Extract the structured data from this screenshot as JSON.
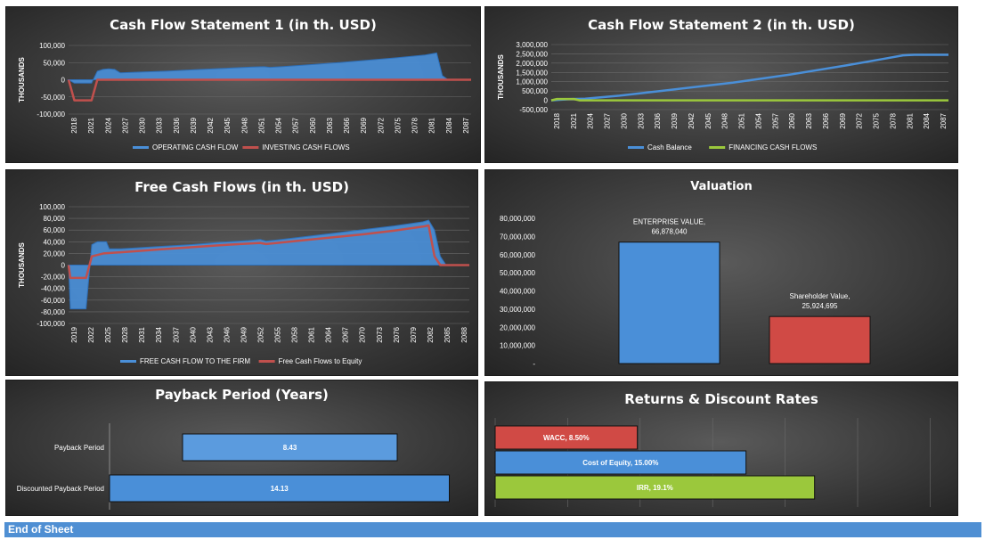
{
  "footer": {
    "label": "End of Sheet"
  },
  "chart_data": [
    {
      "id": "cfs1",
      "type": "area",
      "title": "Cash Flow Statement 1 (in th. USD)",
      "ylabel": "THOUSANDS",
      "xlabel": "",
      "ylim": [
        -100000,
        100000
      ],
      "y_ticks": [
        -100000,
        -50000,
        0,
        50000,
        100000
      ],
      "y_tick_labels": [
        "-100,000",
        "-50,000",
        "0",
        "50,000",
        "100,000"
      ],
      "x_tick_labels": [
        "2018",
        "2021",
        "2024",
        "2027",
        "2030",
        "2033",
        "2036",
        "2039",
        "2042",
        "2045",
        "2048",
        "2051",
        "2054",
        "2057",
        "2060",
        "2063",
        "2066",
        "2069",
        "2072",
        "2075",
        "2078",
        "2081",
        "2084",
        "2087"
      ],
      "xlim": [
        2018,
        2088
      ],
      "grid": true,
      "legend_position": "bottom",
      "series": [
        {
          "name": "OPERATING CASH FLOW",
          "type": "area",
          "color": "#4a8fd8",
          "x": [
            2018,
            2019,
            2022,
            2023,
            2024,
            2025,
            2026,
            2027,
            2030,
            2035,
            2040,
            2045,
            2050,
            2052,
            2053,
            2055,
            2060,
            2065,
            2070,
            2075,
            2080,
            2082,
            2083,
            2084,
            2088
          ],
          "y": [
            0,
            -10000,
            -10000,
            25000,
            30000,
            32000,
            30000,
            20000,
            22000,
            25000,
            29000,
            33000,
            37000,
            38000,
            36000,
            38000,
            44000,
            50000,
            57000,
            64000,
            72000,
            78000,
            12000,
            0,
            0
          ]
        },
        {
          "name": "INVESTING CASH FLOWS",
          "type": "line",
          "color": "#c0504d",
          "x": [
            2018,
            2019,
            2022,
            2023,
            2088
          ],
          "y": [
            0,
            -60000,
            -60000,
            0,
            0
          ]
        }
      ]
    },
    {
      "id": "cfs2",
      "type": "line",
      "title": "Cash Flow Statement 2 (in th. USD)",
      "ylabel": "THOUSANDS",
      "xlabel": "",
      "ylim": [
        -500000,
        3000000
      ],
      "y_ticks": [
        -500000,
        0,
        500000,
        1000000,
        1500000,
        2000000,
        2500000,
        3000000
      ],
      "y_tick_labels": [
        "-500,000",
        "0",
        "500,000",
        "1,000,000",
        "1,500,000",
        "2,000,000",
        "2,500,000",
        "3,000,000"
      ],
      "x_tick_labels": [
        "2018",
        "2021",
        "2024",
        "2027",
        "2030",
        "2033",
        "2036",
        "2039",
        "2042",
        "2045",
        "2048",
        "2051",
        "2054",
        "2057",
        "2060",
        "2063",
        "2066",
        "2069",
        "2072",
        "2075",
        "2078",
        "2081",
        "2084",
        "2087"
      ],
      "xlim": [
        2018,
        2088
      ],
      "grid": true,
      "legend_position": "bottom",
      "series": [
        {
          "name": "Cash Balance",
          "type": "line",
          "color": "#4a8fd8",
          "x": [
            2018,
            2021,
            2024,
            2030,
            2040,
            2050,
            2060,
            2070,
            2076,
            2080,
            2082,
            2088
          ],
          "y": [
            0,
            60000,
            90000,
            250000,
            600000,
            950000,
            1380000,
            1880000,
            2200000,
            2420000,
            2450000,
            2450000
          ]
        },
        {
          "name": "FINANCING CASH FLOWS",
          "type": "line",
          "color": "#9bc83c",
          "x": [
            2018,
            2019,
            2022,
            2023,
            2088
          ],
          "y": [
            0,
            70000,
            70000,
            0,
            0
          ]
        }
      ]
    },
    {
      "id": "fcf",
      "type": "area",
      "title": "Free Cash Flows (in th. USD)",
      "ylabel": "THOUSANDS",
      "xlabel": "",
      "ylim": [
        -100000,
        100000
      ],
      "y_ticks": [
        -100000,
        -80000,
        -60000,
        -40000,
        -20000,
        0,
        20000,
        40000,
        60000,
        80000,
        100000
      ],
      "y_tick_labels": [
        "-100,000",
        "-80,000",
        "-60,000",
        "-40,000",
        "-20,000",
        "0",
        "20,000",
        "40,000",
        "60,000",
        "80,000",
        "100,000"
      ],
      "x_tick_labels": [
        "2019",
        "2022",
        "2025",
        "2028",
        "2031",
        "2034",
        "2037",
        "2040",
        "2043",
        "2046",
        "2049",
        "2052",
        "2055",
        "2058",
        "2061",
        "2064",
        "2067",
        "2070",
        "2073",
        "2076",
        "2079",
        "2082",
        "2085",
        "2088"
      ],
      "xlim": [
        2019,
        2088
      ],
      "grid": true,
      "legend_position": "bottom",
      "series": [
        {
          "name": "FREE CASH FLOW TO THE FIRM",
          "type": "area",
          "color": "#4a8fd8",
          "x": [
            2019,
            2019.3,
            2022,
            2023,
            2024,
            2025.5,
            2026,
            2028,
            2030,
            2035,
            2040,
            2045,
            2050,
            2052,
            2053,
            2055,
            2060,
            2065,
            2070,
            2075,
            2080,
            2081,
            2082,
            2083,
            2084,
            2088
          ],
          "y": [
            0,
            -75000,
            -75000,
            35000,
            40000,
            40000,
            28000,
            28000,
            29000,
            32000,
            35000,
            39000,
            42000,
            44000,
            41000,
            43000,
            49000,
            55000,
            61000,
            67000,
            74000,
            77000,
            60000,
            15000,
            0,
            0
          ]
        },
        {
          "name": "Free Cash Flows to Equity",
          "type": "line",
          "color": "#c0504d",
          "x": [
            2019,
            2019.3,
            2022,
            2023,
            2025,
            2028,
            2035,
            2045,
            2052,
            2053,
            2060,
            2070,
            2075,
            2080,
            2081,
            2082,
            2083,
            2088
          ],
          "y": [
            0,
            -22000,
            -22000,
            15000,
            20000,
            22000,
            27000,
            34000,
            38000,
            36000,
            43000,
            53000,
            59000,
            66000,
            68000,
            15000,
            0,
            0
          ]
        }
      ]
    },
    {
      "id": "valuation",
      "type": "bar",
      "title": "Valuation",
      "xlabel": "",
      "ylabel": "",
      "ylim": [
        0,
        80000000
      ],
      "y_ticks": [
        0,
        10000000,
        20000000,
        30000000,
        40000000,
        50000000,
        60000000,
        70000000,
        80000000
      ],
      "y_tick_labels": [
        "-",
        "10,000,000",
        "20,000,000",
        "30,000,000",
        "40,000,000",
        "50,000,000",
        "60,000,000",
        "70,000,000",
        "80,000,000"
      ],
      "grid": false,
      "categories": [
        "ENTERPRISE VALUE",
        "Shareholder Value"
      ],
      "values": [
        66878040,
        25924695
      ],
      "data_labels": [
        [
          "ENTERPRISE VALUE,",
          "66,878,040"
        ],
        [
          "Shareholder Value,",
          "25,924,695"
        ]
      ],
      "colors": [
        "#4a8fd8",
        "#d04a45"
      ]
    },
    {
      "id": "payback",
      "type": "bar",
      "orientation": "horizontal",
      "title": "Payback Period (Years)",
      "xlabel": "",
      "ylabel": "",
      "categories": [
        "Payback Period",
        "Discounted Payback Period"
      ],
      "values": [
        8.43,
        14.13
      ],
      "data_labels": [
        "8.43",
        "14.13"
      ],
      "xlim": [
        0,
        15
      ],
      "colors": [
        "#5b9bde",
        "#4a8fd8"
      ]
    },
    {
      "id": "returns",
      "type": "bar",
      "orientation": "horizontal",
      "title": "Returns & Discount Rates",
      "xlabel": "",
      "ylabel": "",
      "categories": [
        "WACC",
        "Cost of Equity",
        "IRR"
      ],
      "values": [
        8.5,
        15.0,
        19.1
      ],
      "data_labels": [
        "WACC, 8.50%",
        "Cost of Equity, 15.00%",
        "IRR, 19.1%"
      ],
      "xlim": [
        0,
        27
      ],
      "grid": true,
      "colors": [
        "#d04a45",
        "#4a8fd8",
        "#9bc83c"
      ]
    }
  ]
}
